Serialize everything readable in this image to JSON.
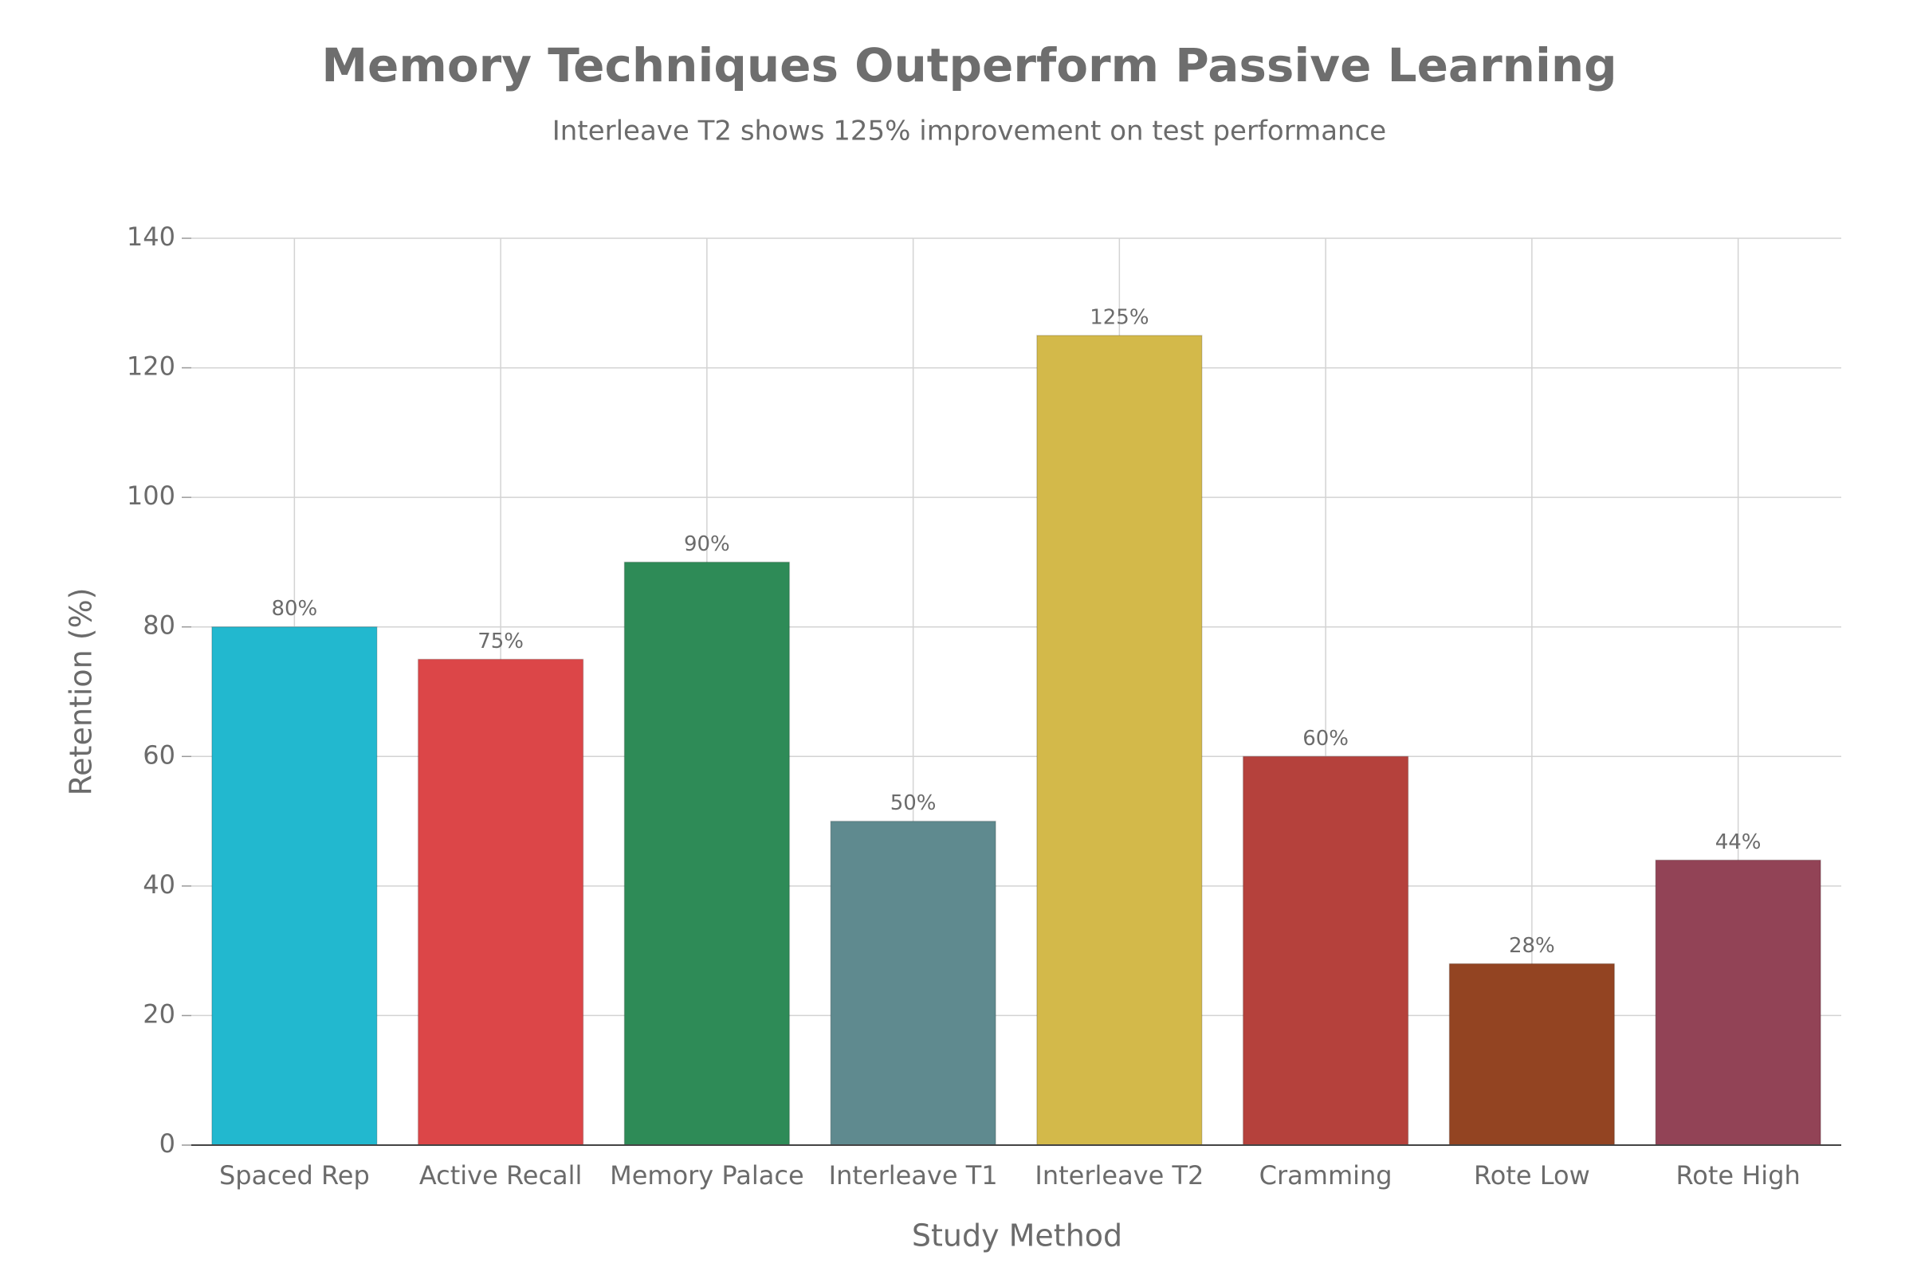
{
  "chart_data": {
    "type": "bar",
    "title": "Memory Techniques Outperform Passive Learning",
    "subtitle": "Interleave T2 shows 125% improvement on test performance",
    "x_label": "Study Method",
    "y_label": "Retention (%)",
    "categories": [
      "Spaced Rep",
      "Active Recall",
      "Memory Palace",
      "Interleave T1",
      "Interleave T2",
      "Cramming",
      "Rote Low",
      "Rote High"
    ],
    "values": [
      80,
      75,
      90,
      50,
      125,
      60,
      28,
      44
    ],
    "value_labels": [
      "80%",
      "75%",
      "90%",
      "50%",
      "125%",
      "60%",
      "28%",
      "44%"
    ],
    "colors": [
      "#22b8cf",
      "#dc4648",
      "#2e8b57",
      "#5f8a8f",
      "#d3b94a",
      "#b5413c",
      "#934422",
      "#924356"
    ],
    "ylim": [
      0,
      140
    ],
    "yticks": [
      0,
      20,
      40,
      60,
      80,
      100,
      120,
      140
    ],
    "grid": true
  }
}
